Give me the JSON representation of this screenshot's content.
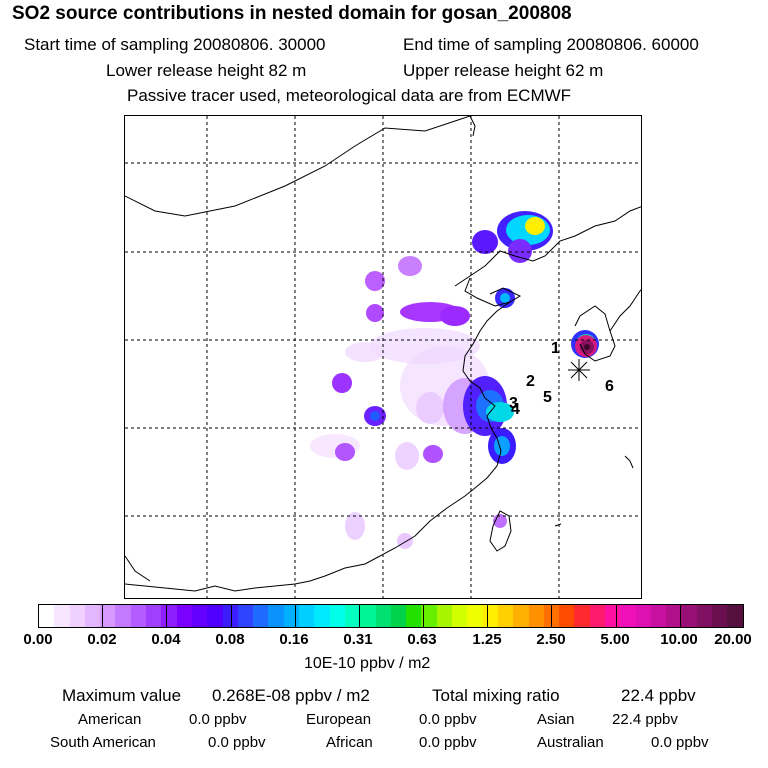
{
  "title": "SO2 source contributions in nested domain for gosan_200808",
  "header": {
    "start_time": "Start time of sampling 20080806. 30000",
    "end_time": "End time of sampling 20080806. 60000",
    "lower_release": "Lower release height   82 m",
    "upper_release": "Upper release height   62 m",
    "tracer_note": "Passive tracer used, meteorological data are from ECMWF"
  },
  "map": {
    "markers": [
      "1",
      "2",
      "3",
      "4",
      "5",
      "6"
    ]
  },
  "legend": {
    "ticks": [
      "0.00",
      "0.02",
      "0.04",
      "0.08",
      "0.16",
      "0.31",
      "0.63",
      "1.25",
      "2.50",
      "5.00",
      "10.00",
      "20.00"
    ],
    "unit": "10E-10 ppbv / m2",
    "colors": [
      "#ffffff",
      "#f7e6ff",
      "#efd0ff",
      "#e3b6ff",
      "#d699ff",
      "#c47aff",
      "#b45cff",
      "#a040ff",
      "#8d1fff",
      "#7a00ff",
      "#6400ff",
      "#5000ff",
      "#3c1dff",
      "#2e44ff",
      "#1e6cff",
      "#0a93ff",
      "#00b0ff",
      "#00cfff",
      "#00eaff",
      "#00ffe8",
      "#00ffc0",
      "#00f594",
      "#00e070",
      "#00d24a",
      "#22e000",
      "#66f000",
      "#a8f500",
      "#d2ff00",
      "#f0ff00",
      "#ffee00",
      "#ffd000",
      "#ffb000",
      "#ff9000",
      "#ff7000",
      "#ff4c00",
      "#ff2a30",
      "#ff1a6e",
      "#ff10a0",
      "#f010b8",
      "#dd10b0",
      "#c8109e",
      "#b0108a",
      "#981076",
      "#801062",
      "#6a1050",
      "#55103f"
    ]
  },
  "summary": {
    "max_label": "Maximum value",
    "max_value": "0.268E-08 ppbv / m2",
    "total_label": "Total mixing ratio",
    "total_value": "22.4 ppbv",
    "american_label": "American",
    "american_value": "0.0 ppbv",
    "european_label": "European",
    "european_value": "0.0 ppbv",
    "asian_label": "Asian",
    "asian_value": "22.4 ppbv",
    "south_american_label": "South American",
    "south_american_value": "0.0 ppbv",
    "african_label": "African",
    "african_value": "0.0 ppbv",
    "australian_label": "Australian",
    "australian_value": "0.0 ppbv"
  }
}
